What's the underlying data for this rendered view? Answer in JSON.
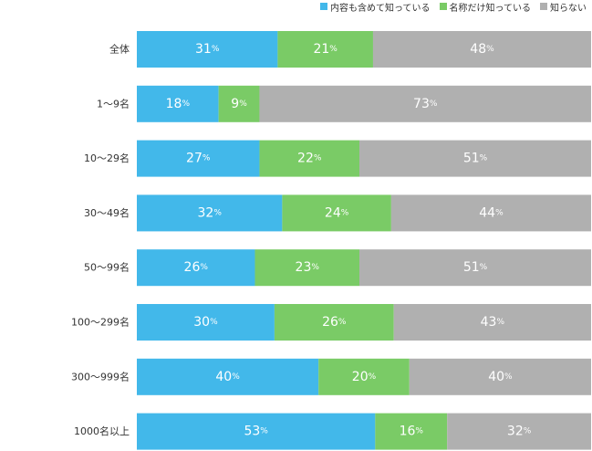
{
  "chart_data": {
    "type": "bar",
    "orientation": "horizontal",
    "stacked": true,
    "categories": [
      "全体",
      "1～9名",
      "10～29名",
      "30～49名",
      "50～99名",
      "100～299名",
      "300～999名",
      "1000名以上"
    ],
    "series": [
      {
        "name": "内容も含めて知っている",
        "color": "#42b8ea",
        "values": [
          31,
          18,
          27,
          32,
          26,
          30,
          40,
          53
        ]
      },
      {
        "name": "名称だけ知っている",
        "color": "#7acb66",
        "values": [
          21,
          9,
          22,
          24,
          23,
          26,
          20,
          16
        ]
      },
      {
        "name": "知らない",
        "color": "#b0b0b0",
        "values": [
          48,
          73,
          51,
          44,
          51,
          43,
          40,
          32
        ]
      }
    ],
    "unit": "%",
    "legend_position": "top-right",
    "grid": false
  }
}
